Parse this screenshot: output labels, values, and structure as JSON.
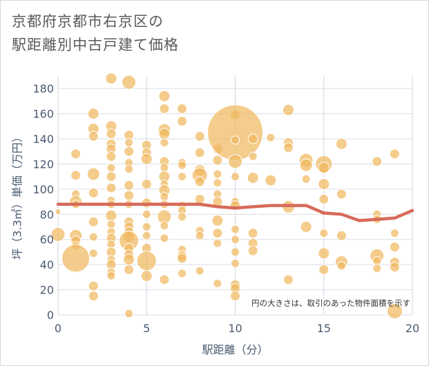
{
  "chart_data": {
    "type": "scatter",
    "title_lines": [
      "京都府京都市右京区の",
      "駅距離別中古戸建て価格"
    ],
    "xlabel": "駅距離（分）",
    "ylabel": "坪（3.3㎡）単価（万円）",
    "xlim": [
      0,
      20
    ],
    "ylim": [
      0,
      190
    ],
    "xticks": [
      0,
      5,
      10,
      15,
      20
    ],
    "yticks": [
      0,
      20,
      40,
      60,
      80,
      100,
      120,
      140,
      160,
      180
    ],
    "grid": true,
    "note": "円の大きさは、取引のあった物件面積を示す",
    "bubble_color": "#f0b860",
    "line_color": "#d86a5a",
    "points": [
      [
        0,
        82,
        4
      ],
      [
        0,
        64,
        10
      ],
      [
        1,
        128,
        7
      ],
      [
        1,
        111,
        7
      ],
      [
        1,
        96,
        6
      ],
      [
        1,
        90,
        9
      ],
      [
        1,
        88,
        6
      ],
      [
        1,
        63,
        9
      ],
      [
        1,
        59,
        7
      ],
      [
        1,
        55,
        6
      ],
      [
        1,
        45,
        20
      ],
      [
        2,
        160,
        8
      ],
      [
        2,
        148,
        8
      ],
      [
        2,
        142,
        7
      ],
      [
        2,
        112,
        9
      ],
      [
        2,
        97,
        7
      ],
      [
        2,
        74,
        7
      ],
      [
        2,
        62,
        6
      ],
      [
        2,
        49,
        6
      ],
      [
        2,
        23,
        7
      ],
      [
        2,
        15,
        7
      ],
      [
        3,
        188,
        8
      ],
      [
        3,
        150,
        8
      ],
      [
        3,
        144,
        7
      ],
      [
        3,
        136,
        7
      ],
      [
        3,
        132,
        7
      ],
      [
        3,
        126,
        7
      ],
      [
        3,
        117,
        6
      ],
      [
        3,
        110,
        7
      ],
      [
        3,
        101,
        7
      ],
      [
        3,
        91,
        6
      ],
      [
        3,
        88,
        6
      ],
      [
        3,
        79,
        8
      ],
      [
        3,
        72,
        6
      ],
      [
        3,
        66,
        6
      ],
      [
        3,
        61,
        7
      ],
      [
        3,
        56,
        6
      ],
      [
        3,
        50,
        7
      ],
      [
        3,
        44,
        6
      ],
      [
        3,
        40,
        7
      ],
      [
        3,
        34,
        6
      ],
      [
        3,
        31,
        6
      ],
      [
        4,
        185,
        10
      ],
      [
        4,
        143,
        7
      ],
      [
        4,
        137,
        6
      ],
      [
        4,
        130,
        7
      ],
      [
        4,
        121,
        6
      ],
      [
        4,
        116,
        6
      ],
      [
        4,
        103,
        7
      ],
      [
        4,
        95,
        7
      ],
      [
        4,
        88,
        6
      ],
      [
        4,
        74,
        7
      ],
      [
        4,
        70,
        7
      ],
      [
        4,
        66,
        7
      ],
      [
        4,
        62,
        8
      ],
      [
        4,
        59,
        14
      ],
      [
        4,
        53,
        7
      ],
      [
        4,
        48,
        7
      ],
      [
        4,
        44,
        8
      ],
      [
        4,
        36,
        7
      ],
      [
        4,
        1,
        6
      ],
      [
        5,
        135,
        7
      ],
      [
        5,
        129,
        7
      ],
      [
        5,
        124,
        8
      ],
      [
        5,
        104,
        7
      ],
      [
        5,
        89,
        7
      ],
      [
        5,
        80,
        6
      ],
      [
        5,
        70,
        6
      ],
      [
        5,
        63,
        6
      ],
      [
        5,
        53,
        7
      ],
      [
        5,
        43,
        14
      ],
      [
        5,
        31,
        8
      ],
      [
        6,
        174,
        8
      ],
      [
        6,
        164,
        7
      ],
      [
        6,
        147,
        9
      ],
      [
        6,
        144,
        8
      ],
      [
        6,
        137,
        6
      ],
      [
        6,
        122,
        7
      ],
      [
        6,
        117,
        6
      ],
      [
        6,
        110,
        8
      ],
      [
        6,
        104,
        6
      ],
      [
        6,
        99,
        8
      ],
      [
        6,
        94,
        6
      ],
      [
        6,
        88,
        6
      ],
      [
        6,
        78,
        10
      ],
      [
        6,
        71,
        6
      ],
      [
        6,
        61,
        6
      ],
      [
        6,
        28,
        7
      ],
      [
        7,
        164,
        7
      ],
      [
        7,
        154,
        7
      ],
      [
        7,
        121,
        6
      ],
      [
        7,
        119,
        6
      ],
      [
        7,
        110,
        6
      ],
      [
        7,
        87,
        6
      ],
      [
        7,
        83,
        6
      ],
      [
        7,
        78,
        6
      ],
      [
        7,
        52,
        6
      ],
      [
        7,
        47,
        7
      ],
      [
        7,
        45,
        7
      ],
      [
        7,
        33,
        6
      ],
      [
        8,
        142,
        7
      ],
      [
        8,
        129,
        7
      ],
      [
        8,
        115,
        8
      ],
      [
        8,
        111,
        11
      ],
      [
        8,
        106,
        7
      ],
      [
        8,
        92,
        7
      ],
      [
        8,
        67,
        6
      ],
      [
        8,
        63,
        6
      ],
      [
        8,
        35,
        6
      ],
      [
        9,
        132,
        7
      ],
      [
        9,
        123,
        7
      ],
      [
        9,
        112,
        6
      ],
      [
        9,
        105,
        6
      ],
      [
        9,
        96,
        6
      ],
      [
        9,
        90,
        7
      ],
      [
        9,
        75,
        8
      ],
      [
        9,
        65,
        7
      ],
      [
        9,
        57,
        6
      ],
      [
        9,
        25,
        6
      ],
      [
        10,
        159,
        7
      ],
      [
        10,
        145,
        40
      ],
      [
        10,
        139,
        6
      ],
      [
        10,
        122,
        10
      ],
      [
        10,
        110,
        6
      ],
      [
        10,
        90,
        6
      ],
      [
        10,
        87,
        7
      ],
      [
        10,
        68,
        6
      ],
      [
        10,
        60,
        6
      ],
      [
        10,
        50,
        6
      ],
      [
        10,
        41,
        6
      ],
      [
        10,
        24,
        7
      ],
      [
        10,
        21,
        7
      ],
      [
        10,
        15,
        7
      ],
      [
        11,
        140,
        7
      ],
      [
        11,
        126,
        6
      ],
      [
        11,
        109,
        8
      ],
      [
        11,
        65,
        7
      ],
      [
        11,
        57,
        7
      ],
      [
        11,
        51,
        7
      ],
      [
        12,
        141,
        6
      ],
      [
        12,
        107,
        8
      ],
      [
        13,
        163,
        8
      ],
      [
        13,
        137,
        7
      ],
      [
        13,
        133,
        7
      ],
      [
        13,
        86,
        9
      ],
      [
        13,
        28,
        7
      ],
      [
        14,
        123,
        10
      ],
      [
        14,
        119,
        9
      ],
      [
        14,
        108,
        6
      ],
      [
        14,
        70,
        8
      ],
      [
        15,
        120,
        12
      ],
      [
        15,
        117,
        8
      ],
      [
        15,
        104,
        8
      ],
      [
        15,
        92,
        7
      ],
      [
        15,
        65,
        6
      ],
      [
        15,
        49,
        8
      ],
      [
        15,
        36,
        7
      ],
      [
        16,
        136,
        8
      ],
      [
        16,
        96,
        7
      ],
      [
        16,
        63,
        7
      ],
      [
        16,
        42,
        9
      ],
      [
        16,
        39,
        6
      ],
      [
        18,
        122,
        7
      ],
      [
        18,
        80,
        6
      ],
      [
        18,
        76,
        6
      ],
      [
        18,
        47,
        10
      ],
      [
        18,
        43,
        6
      ],
      [
        18,
        37,
        6
      ],
      [
        19,
        128,
        7
      ],
      [
        19,
        65,
        6
      ],
      [
        19,
        54,
        7
      ],
      [
        19,
        42,
        7
      ],
      [
        19,
        38,
        7
      ],
      [
        19,
        3,
        11
      ]
    ],
    "line": {
      "x": [
        0,
        1,
        2,
        3,
        4,
        5,
        6,
        7,
        8,
        9,
        10,
        11,
        12,
        13,
        14,
        15,
        16,
        17,
        18,
        19,
        20
      ],
      "y": [
        88,
        88,
        88,
        88,
        88,
        88,
        88,
        88,
        88,
        86,
        85,
        86,
        87,
        87,
        87,
        81,
        80,
        75,
        76,
        77,
        83
      ]
    }
  }
}
